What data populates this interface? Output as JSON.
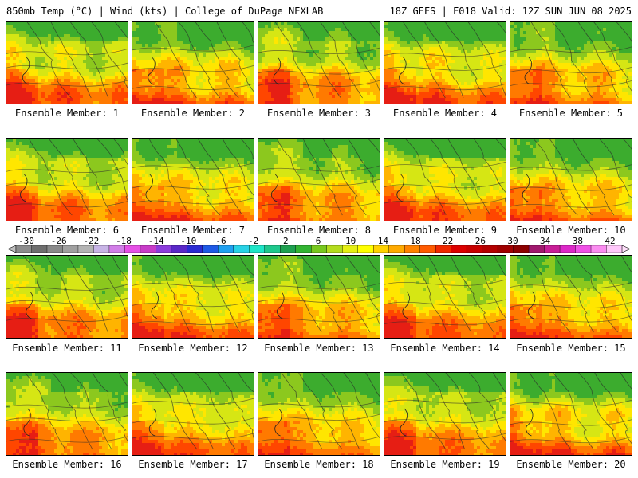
{
  "header": {
    "left_title": "850mb Temp (°C) | Wind (kts) | College of DuPage NEXLAB",
    "right_title": "18Z GEFS | F018 Valid: 12Z SUN JUN 08 2025"
  },
  "panels": [
    {
      "label": "Ensemble Member: 1"
    },
    {
      "label": "Ensemble Member: 2"
    },
    {
      "label": "Ensemble Member: 3"
    },
    {
      "label": "Ensemble Member: 4"
    },
    {
      "label": "Ensemble Member: 5"
    },
    {
      "label": "Ensemble Member: 6"
    },
    {
      "label": "Ensemble Member: 7"
    },
    {
      "label": "Ensemble Member: 8"
    },
    {
      "label": "Ensemble Member: 9"
    },
    {
      "label": "Ensemble Member: 10"
    },
    {
      "label": "Ensemble Member: 11"
    },
    {
      "label": "Ensemble Member: 12"
    },
    {
      "label": "Ensemble Member: 13"
    },
    {
      "label": "Ensemble Member: 14"
    },
    {
      "label": "Ensemble Member: 15"
    },
    {
      "label": "Ensemble Member: 16"
    },
    {
      "label": "Ensemble Member: 17"
    },
    {
      "label": "Ensemble Member: 18"
    },
    {
      "label": "Ensemble Member: 19"
    },
    {
      "label": "Ensemble Member: 20"
    }
  ],
  "colorbar": {
    "ticks": [
      "-30",
      "-26",
      "-22",
      "-18",
      "-14",
      "-10",
      "-6",
      "-2",
      "2",
      "6",
      "10",
      "14",
      "18",
      "22",
      "26",
      "30",
      "34",
      "38",
      "42"
    ],
    "colors": [
      "#8c8c8c",
      "#6e6e6e",
      "#8a8a8a",
      "#a0a0a0",
      "#b4b4b4",
      "#c8b4e6",
      "#d27ee8",
      "#e650e6",
      "#c83cc8",
      "#8c3cdc",
      "#5a28c8",
      "#2a2ad2",
      "#1e5ae6",
      "#1ea0f0",
      "#28d2e6",
      "#1ee6c8",
      "#1ec88c",
      "#1ea050",
      "#32b432",
      "#78c81e",
      "#b4dc1e",
      "#e6f014",
      "#ffff00",
      "#ffd200",
      "#ffaa00",
      "#ff8200",
      "#ff5a00",
      "#f02800",
      "#dc0000",
      "#c80000",
      "#b40000",
      "#a00000",
      "#8c0000",
      "#a0186e",
      "#c81e96",
      "#dc28c8",
      "#f050e6",
      "#fa8cf0",
      "#ffc8fa"
    ]
  }
}
